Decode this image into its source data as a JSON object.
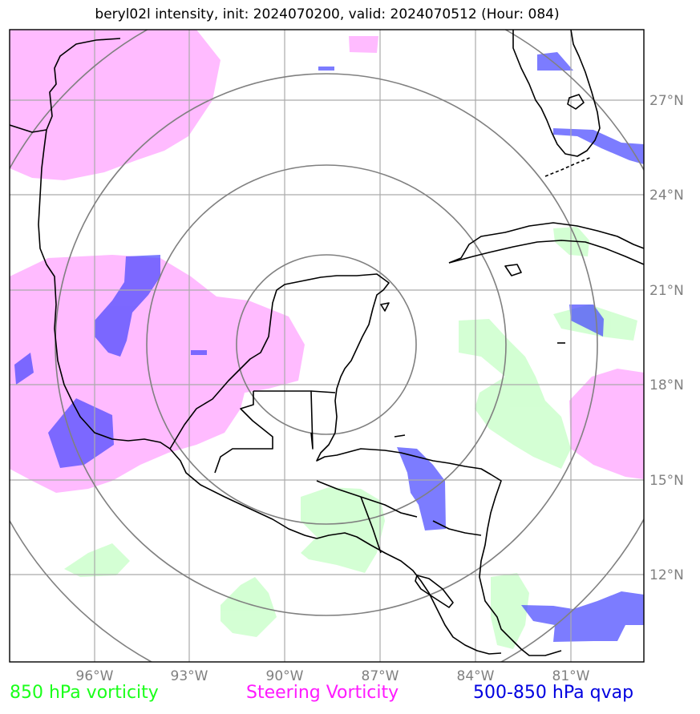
{
  "title": "beryl02l intensity, init: 2024070200, valid: 2024070512 (Hour: 084)",
  "x_ticks": [
    "96°W",
    "93°W",
    "90°W",
    "87°W",
    "84°W",
    "81°W"
  ],
  "y_ticks": [
    "27°N",
    "24°N",
    "21°N",
    "18°N",
    "15°N",
    "12°N"
  ],
  "legend": {
    "vort850": "850 hPa vorticity",
    "steering": "Steering Vorticity",
    "qvap": "500-850 hPa qvap"
  },
  "colors": {
    "vort850": "#ccffcc",
    "steering": "#ffaaff",
    "qvap": "#4444ff",
    "legend_850": "#1aff1a",
    "legend_steering": "#ff1aff",
    "legend_qvap": "#0000e0",
    "grid": "#aaaaaa",
    "range_rings": "#808080"
  },
  "map_data": {
    "lon_range": [
      -99,
      -79
    ],
    "lat_range": [
      9,
      29
    ],
    "range_ring_count": 4
  }
}
